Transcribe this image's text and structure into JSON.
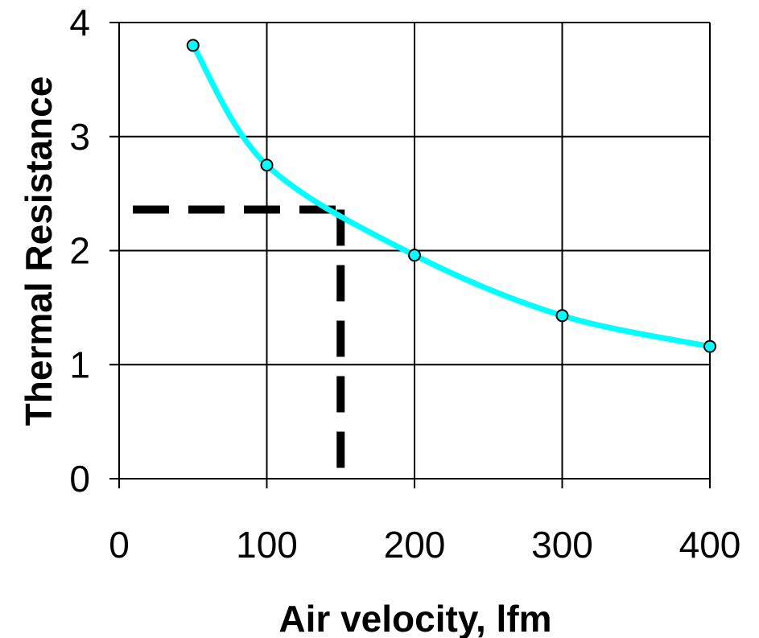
{
  "chart_data": {
    "type": "line",
    "xlabel": "Air velocity, lfm",
    "ylabel": "Thermal Resistance",
    "xlim": [
      0,
      400
    ],
    "ylim": [
      0,
      4
    ],
    "x_ticks": [
      0,
      100,
      200,
      300,
      400
    ],
    "y_ticks": [
      0,
      1,
      2,
      3,
      4
    ],
    "x_tick_labels": [
      "0",
      "100",
      "200",
      "300",
      "400"
    ],
    "y_tick_labels": [
      "0",
      "1",
      "2",
      "3",
      "4"
    ],
    "grid": true,
    "series": [
      {
        "x": [
          50,
          100,
          200,
          300,
          400
        ],
        "y": [
          3.8,
          2.75,
          1.96,
          1.43,
          1.16
        ],
        "line_color": "#00ffff",
        "marker_fill": "#00ffff",
        "marker_edge": "#000000",
        "smooth": true
      }
    ],
    "reference_lines": {
      "color": "#000000",
      "style": "dashed",
      "x_value": 150,
      "y_value": 2.36
    }
  }
}
